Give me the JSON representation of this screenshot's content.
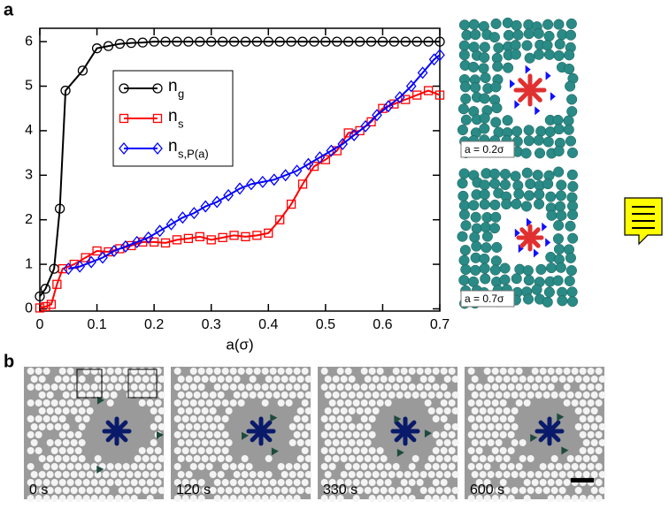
{
  "chart_data": {
    "type": "line",
    "x_label": "a(σ)",
    "xlim": [
      0,
      0.7
    ],
    "ylim": [
      -0.05,
      6.3
    ],
    "xticks": [
      0,
      0.1,
      0.2,
      0.3,
      0.4,
      0.5,
      0.6,
      0.7
    ],
    "yticks": [
      0,
      1,
      2,
      3,
      4,
      5,
      6
    ],
    "legend": "upper-left",
    "series": [
      {
        "name": "n",
        "name_sub": "g",
        "color": "#000000",
        "marker": "circle",
        "x": [
          0,
          0.01,
          0.025,
          0.035,
          0.045,
          0.075,
          0.1,
          0.12,
          0.14,
          0.16,
          0.18,
          0.2,
          0.22,
          0.24,
          0.26,
          0.28,
          0.3,
          0.32,
          0.34,
          0.36,
          0.38,
          0.4,
          0.42,
          0.44,
          0.46,
          0.48,
          0.5,
          0.52,
          0.54,
          0.56,
          0.58,
          0.6,
          0.62,
          0.64,
          0.66,
          0.68,
          0.7
        ],
        "values": [
          0.28,
          0.45,
          0.9,
          2.25,
          4.9,
          5.35,
          5.85,
          5.9,
          5.95,
          5.97,
          5.98,
          6,
          6,
          6,
          6,
          6,
          6,
          6,
          6,
          6,
          6,
          6,
          6,
          6,
          6,
          6,
          6,
          6,
          6,
          6,
          6,
          6,
          6,
          6,
          6,
          6,
          6
        ]
      },
      {
        "name": "n",
        "name_sub": "s",
        "color": "#ff0000",
        "marker": "square",
        "x": [
          0,
          0.01,
          0.02,
          0.03,
          0.04,
          0.06,
          0.08,
          0.1,
          0.12,
          0.14,
          0.16,
          0.18,
          0.2,
          0.22,
          0.24,
          0.26,
          0.28,
          0.3,
          0.32,
          0.34,
          0.36,
          0.38,
          0.4,
          0.42,
          0.44,
          0.46,
          0.48,
          0.5,
          0.52,
          0.54,
          0.56,
          0.58,
          0.6,
          0.62,
          0.64,
          0.66,
          0.68,
          0.7
        ],
        "values": [
          0.02,
          0.05,
          0.1,
          0.55,
          0.9,
          1.0,
          1.15,
          1.3,
          1.28,
          1.35,
          1.42,
          1.5,
          1.5,
          1.48,
          1.55,
          1.58,
          1.62,
          1.55,
          1.6,
          1.65,
          1.62,
          1.65,
          1.7,
          2.0,
          2.35,
          2.8,
          3.2,
          3.35,
          3.55,
          3.95,
          4.0,
          4.2,
          4.5,
          4.6,
          4.7,
          4.8,
          4.9,
          4.8
        ]
      },
      {
        "name": "n",
        "name_sub": "s,P(a)",
        "color": "#0000ff",
        "marker": "diamond",
        "x": [
          0.05,
          0.07,
          0.09,
          0.11,
          0.13,
          0.15,
          0.17,
          0.19,
          0.21,
          0.23,
          0.25,
          0.27,
          0.29,
          0.31,
          0.33,
          0.35,
          0.37,
          0.39,
          0.41,
          0.43,
          0.45,
          0.47,
          0.49,
          0.51,
          0.53,
          0.55,
          0.57,
          0.59,
          0.61,
          0.63,
          0.65,
          0.67,
          0.69,
          0.7
        ],
        "values": [
          0.9,
          0.95,
          1.05,
          1.15,
          1.3,
          1.4,
          1.5,
          1.6,
          1.75,
          1.9,
          2.05,
          2.15,
          2.3,
          2.4,
          2.55,
          2.7,
          2.8,
          2.85,
          2.9,
          3.0,
          3.1,
          3.25,
          3.4,
          3.55,
          3.7,
          3.9,
          4.1,
          4.35,
          4.55,
          4.75,
          5.0,
          5.3,
          5.6,
          5.7
        ]
      }
    ]
  },
  "panel_labels": [
    "a",
    "b"
  ],
  "simulation_captions": [
    "a = 0.2σ",
    "a = 0.7σ"
  ],
  "time_labels": [
    "0 s",
    "120 s",
    "330 s",
    "600 s"
  ]
}
